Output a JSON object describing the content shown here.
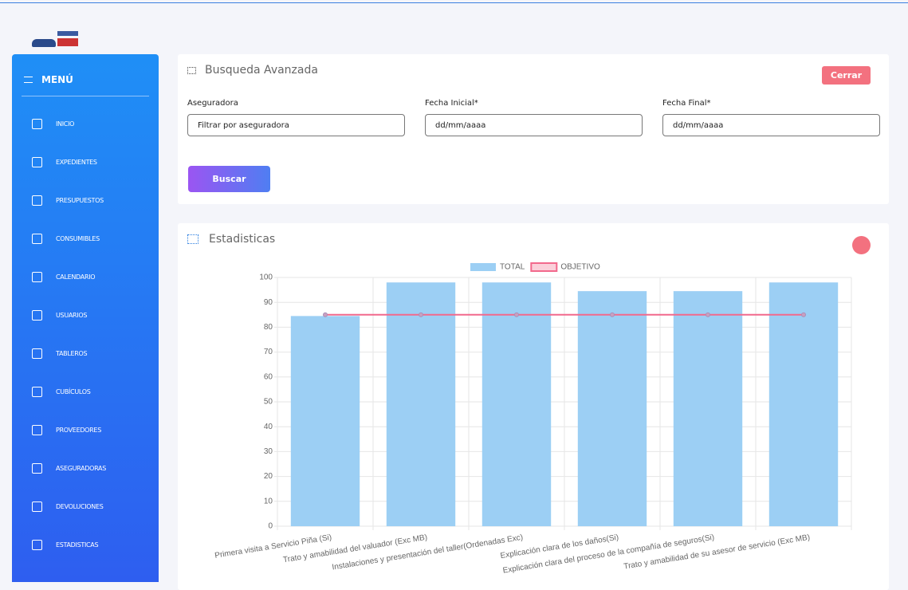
{
  "sidebar": {
    "title": "MENÚ",
    "items": [
      "INICIO",
      "EXPEDIENTES",
      "PRESUPUESTOS",
      "CONSUMIBLES",
      "CALENDARIO",
      "USUARIOS",
      "TABLEROS",
      "CUBÍCULOS",
      "PROVEEDORES",
      "ASEGURADORAS",
      "DEVOLUCIONES",
      "ESTADISTICAS"
    ]
  },
  "search": {
    "title": "Busqueda Avanzada",
    "close": "Cerrar",
    "fields": [
      {
        "label": "Aseguradora",
        "placeholder": "Filtrar por aseguradora"
      },
      {
        "label": "Fecha Inicial*",
        "placeholder": "dd/mm/aaaa"
      },
      {
        "label": "Fecha Final*",
        "placeholder": "dd/mm/aaaa"
      }
    ],
    "button": "Buscar"
  },
  "stats": {
    "title": "Estadisticas"
  },
  "chart_data": {
    "type": "bar",
    "categories": [
      "Primera visita a Servicio Piña (Si)",
      "Trato y amabilidad del valuador (Exc MB)",
      "Instalaciones y presentación del taller(Ordenadas Exc)",
      "Explicación clara de los daños(Si)",
      "Explicación clara del proceso de la compañía de seguros(Si)",
      "Trato y amabilidad de su asesor de servicio (Exc MB)"
    ],
    "series": [
      {
        "name": "TOTAL",
        "type": "bar",
        "color": "#9ccff4",
        "values": [
          84.5,
          98,
          98,
          94.5,
          94.5,
          98
        ]
      },
      {
        "name": "OBJETIVO",
        "type": "line",
        "color": "#f2698c",
        "values": [
          85,
          85,
          85,
          85,
          85,
          85
        ]
      }
    ],
    "ylim": [
      0,
      100
    ],
    "yticks": [
      0,
      10,
      20,
      30,
      40,
      50,
      60,
      70,
      80,
      90,
      100
    ],
    "grid": true,
    "legend": "top"
  }
}
